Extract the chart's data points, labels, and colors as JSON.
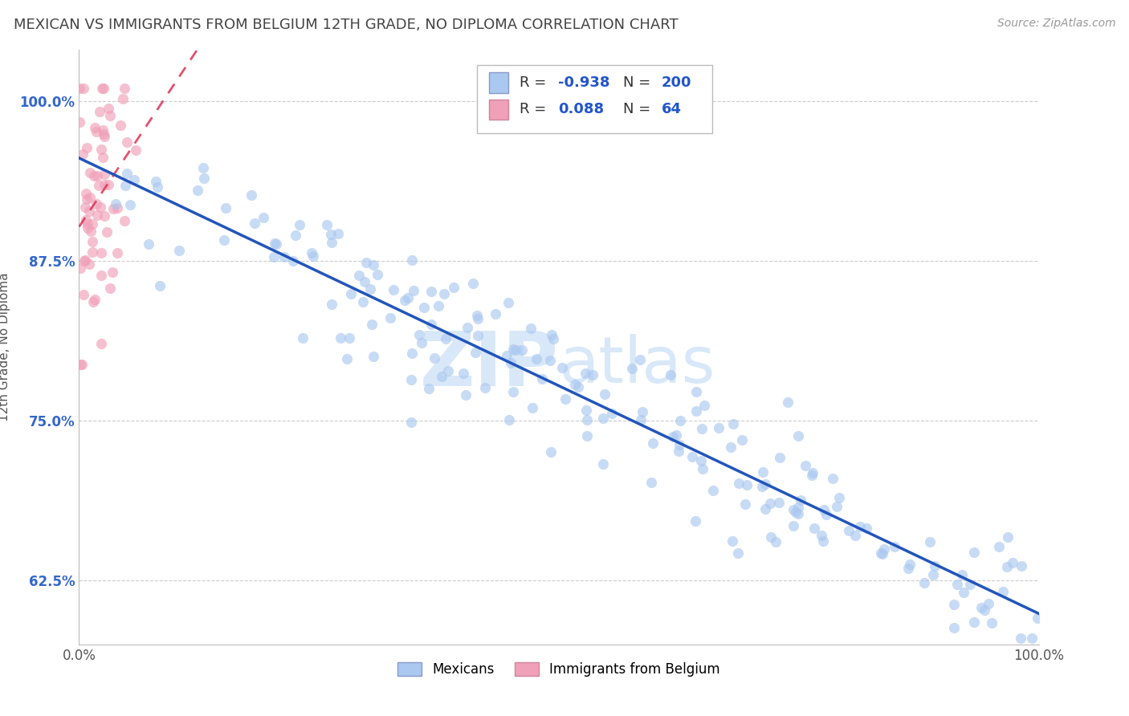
{
  "title": "MEXICAN VS IMMIGRANTS FROM BELGIUM 12TH GRADE, NO DIPLOMA CORRELATION CHART",
  "source": "Source: ZipAtlas.com",
  "ylabel": "12th Grade, No Diploma",
  "legend_labels": [
    "Mexicans",
    "Immigrants from Belgium"
  ],
  "blue_dot_color": "#aac8f0",
  "pink_dot_color": "#f0a0b8",
  "blue_line_color": "#2255bb",
  "pink_line_color": "#dd3355",
  "pink_dash_color": "#ddaaaa",
  "R_blue": -0.938,
  "N_blue": 200,
  "R_pink": 0.088,
  "N_pink": 64,
  "xlim": [
    0.0,
    1.0
  ],
  "ylim": [
    0.575,
    1.04
  ],
  "yticks": [
    0.625,
    0.75,
    0.875,
    1.0
  ],
  "ytick_labels": [
    "62.5%",
    "75.0%",
    "87.5%",
    "100.0%"
  ],
  "xtick_labels": [
    "0.0%",
    "100.0%"
  ],
  "background_color": "#ffffff",
  "title_fontsize": 13,
  "axis_label_fontsize": 11,
  "watermark_color": "#d8e8f8"
}
